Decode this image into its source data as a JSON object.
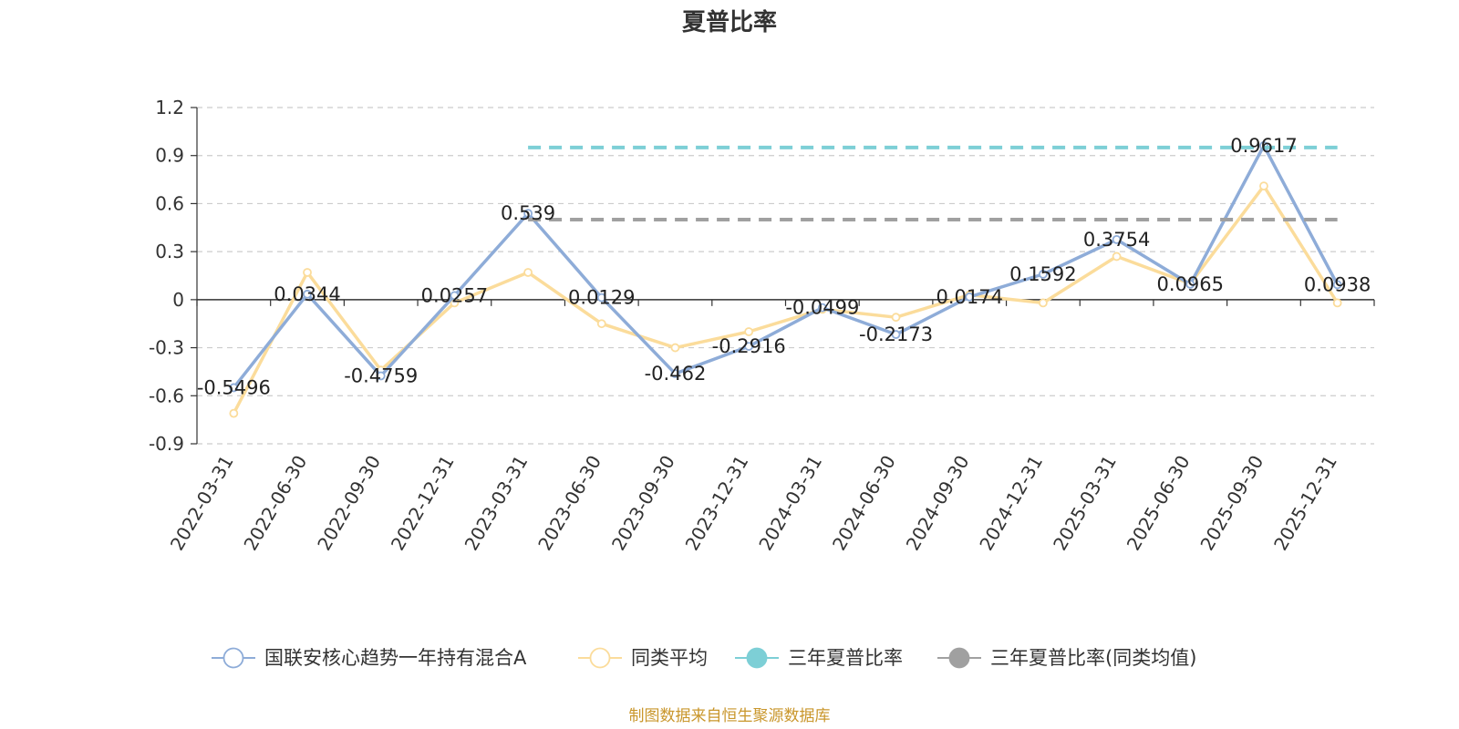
{
  "chart_data": {
    "type": "line",
    "title": "夏普比率",
    "categories": [
      "2022-03-31",
      "2022-06-30",
      "2022-09-30",
      "2022-12-31",
      "2023-03-31",
      "2023-06-30",
      "2023-09-30",
      "2023-12-31",
      "2024-03-31",
      "2024-06-30",
      "2024-09-30",
      "2024-12-31",
      "2025-03-31",
      "2025-06-30",
      "2025-09-30",
      "2025-12-31"
    ],
    "ylim": [
      -0.9,
      1.2
    ],
    "yticks": [
      "1.2",
      "0.9",
      "0.6",
      "0.3",
      "0",
      "-0.3",
      "-0.6",
      "-0.9"
    ],
    "grid": true,
    "legend_position": "bottom",
    "series": [
      {
        "name": "国联安核心趋势一年持有混合A",
        "color": "#8eacd8",
        "values": [
          -0.5496,
          0.0344,
          -0.4759,
          0.0257,
          0.539,
          0.0129,
          -0.462,
          -0.2916,
          -0.0499,
          -0.2173,
          0.0174,
          0.1592,
          0.3754,
          0.0965,
          0.9617,
          0.0938
        ],
        "labels": [
          "-0.5496",
          "0.0344",
          "-0.4759",
          "0.0257",
          "0.539",
          "0.0129",
          "-0.462",
          "-0.2916",
          "-0.0499",
          "-0.2173",
          "0.0174",
          "0.1592",
          "0.3754",
          "0.0965",
          "0.9617",
          "0.0938"
        ]
      },
      {
        "name": "同类平均",
        "color": "#fbdc9b",
        "values": [
          -0.71,
          0.17,
          -0.44,
          -0.02,
          0.17,
          -0.15,
          -0.3,
          -0.2,
          -0.06,
          -0.11,
          0.03,
          -0.02,
          0.27,
          0.1,
          0.71,
          -0.02
        ]
      },
      {
        "name": "三年夏普比率",
        "color": "#7dcfd6",
        "dashed": true,
        "values": [
          null,
          null,
          null,
          null,
          0.95,
          0.95,
          0.95,
          0.95,
          0.95,
          0.95,
          0.95,
          0.95,
          0.95,
          0.95,
          0.95,
          0.95
        ]
      },
      {
        "name": "三年夏普比率(同类均值)",
        "color": "#a0a0a0",
        "dashed": true,
        "values": [
          null,
          null,
          null,
          null,
          0.5,
          0.5,
          0.5,
          0.5,
          0.5,
          0.5,
          0.5,
          0.5,
          0.5,
          0.5,
          0.5,
          0.5
        ]
      }
    ]
  },
  "footer": {
    "source": "制图数据来自恒生聚源数据库"
  }
}
